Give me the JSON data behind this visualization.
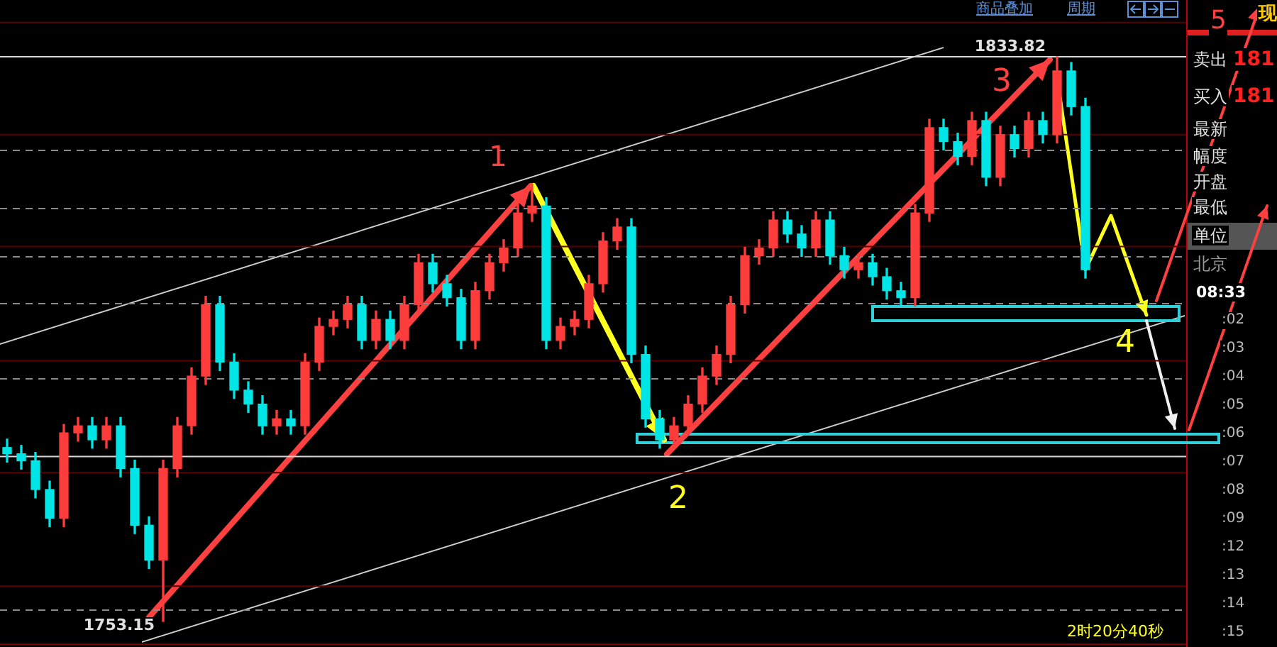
{
  "chart_data": {
    "type": "candlestick",
    "categories": [
      null,
      null,
      null,
      null,
      null,
      null,
      null,
      null,
      null,
      null,
      null,
      null,
      null,
      null,
      null,
      null,
      null,
      null,
      null,
      null,
      null,
      null,
      null,
      null,
      null,
      null,
      null,
      null,
      null,
      null,
      null,
      null,
      null,
      null,
      null,
      null,
      null,
      null,
      null,
      null,
      null,
      null,
      null,
      null,
      null,
      null,
      null,
      null,
      null,
      null,
      null,
      null,
      null,
      null,
      null,
      null,
      null,
      null,
      null,
      null,
      null,
      null,
      null,
      null,
      null,
      null,
      null,
      null,
      null,
      null,
      null,
      null,
      null,
      null,
      null,
      null,
      null
    ],
    "ohlc": [
      [
        1778.0,
        1779.2,
        1775.9,
        1777.1
      ],
      [
        1777.1,
        1778.3,
        1774.9,
        1776.1
      ],
      [
        1776.1,
        1777.3,
        1770.8,
        1772.0
      ],
      [
        1772.0,
        1773.2,
        1766.7,
        1767.9
      ],
      [
        1767.9,
        1781.3,
        1766.7,
        1780.1
      ],
      [
        1780.1,
        1782.3,
        1778.9,
        1781.1
      ],
      [
        1781.1,
        1782.3,
        1777.9,
        1779.1
      ],
      [
        1779.1,
        1782.3,
        1777.9,
        1781.1
      ],
      [
        1781.1,
        1782.3,
        1773.8,
        1775.0
      ],
      [
        1775.0,
        1776.2,
        1765.7,
        1766.9
      ],
      [
        1766.9,
        1768.1,
        1760.7,
        1761.9
      ],
      [
        1761.9,
        1776.2,
        1753.15,
        1775.0
      ],
      [
        1775.0,
        1782.3,
        1773.8,
        1781.1
      ],
      [
        1781.1,
        1789.4,
        1779.9,
        1788.2
      ],
      [
        1788.2,
        1799.6,
        1787.0,
        1798.4
      ],
      [
        1798.4,
        1799.6,
        1789.0,
        1790.2
      ],
      [
        1790.2,
        1791.4,
        1785.0,
        1786.2
      ],
      [
        1786.2,
        1787.4,
        1783.0,
        1784.2
      ],
      [
        1784.2,
        1785.4,
        1779.9,
        1781.1
      ],
      [
        1781.1,
        1783.3,
        1779.9,
        1782.1
      ],
      [
        1782.1,
        1783.3,
        1779.9,
        1781.1
      ],
      [
        1781.1,
        1791.4,
        1779.9,
        1790.2
      ],
      [
        1790.2,
        1796.5,
        1789.0,
        1795.3
      ],
      [
        1795.3,
        1797.5,
        1794.1,
        1796.3
      ],
      [
        1796.3,
        1799.6,
        1795.1,
        1798.4
      ],
      [
        1798.4,
        1799.6,
        1792.1,
        1793.3
      ],
      [
        1793.3,
        1797.5,
        1792.1,
        1796.3
      ],
      [
        1796.3,
        1797.5,
        1792.1,
        1793.3
      ],
      [
        1793.3,
        1799.6,
        1792.1,
        1798.4
      ],
      [
        1798.4,
        1805.6,
        1797.2,
        1804.4
      ],
      [
        1804.4,
        1805.6,
        1800.2,
        1801.4
      ],
      [
        1801.4,
        1802.6,
        1798.2,
        1799.4
      ],
      [
        1799.4,
        1800.6,
        1792.1,
        1793.3
      ],
      [
        1793.3,
        1801.6,
        1792.1,
        1800.4
      ],
      [
        1800.4,
        1805.6,
        1799.2,
        1804.4
      ],
      [
        1804.4,
        1807.7,
        1803.2,
        1806.5
      ],
      [
        1806.5,
        1812.7,
        1805.3,
        1811.5
      ],
      [
        1811.5,
        1815.6,
        1810.3,
        1812.5
      ],
      [
        1812.5,
        1813.7,
        1792.1,
        1793.3
      ],
      [
        1793.3,
        1796.5,
        1792.1,
        1795.3
      ],
      [
        1795.3,
        1797.5,
        1794.1,
        1796.3
      ],
      [
        1796.3,
        1802.6,
        1795.1,
        1801.4
      ],
      [
        1801.4,
        1808.7,
        1800.2,
        1807.5
      ],
      [
        1807.5,
        1810.7,
        1806.3,
        1809.5
      ],
      [
        1809.5,
        1810.7,
        1790.1,
        1791.3
      ],
      [
        1791.3,
        1792.5,
        1780.9,
        1782.1
      ],
      [
        1782.1,
        1783.3,
        1777.9,
        1779.1
      ],
      [
        1779.1,
        1782.3,
        1777.9,
        1781.1
      ],
      [
        1781.1,
        1785.4,
        1779.9,
        1784.2
      ],
      [
        1784.2,
        1789.4,
        1783.0,
        1788.2
      ],
      [
        1788.2,
        1792.5,
        1787.0,
        1791.3
      ],
      [
        1791.3,
        1799.6,
        1790.1,
        1798.4
      ],
      [
        1798.4,
        1806.6,
        1797.2,
        1805.4
      ],
      [
        1805.4,
        1807.7,
        1804.2,
        1806.5
      ],
      [
        1806.5,
        1811.7,
        1805.3,
        1810.5
      ],
      [
        1810.5,
        1811.7,
        1807.3,
        1808.5
      ],
      [
        1808.5,
        1809.7,
        1805.3,
        1806.5
      ],
      [
        1806.5,
        1811.7,
        1805.3,
        1810.5
      ],
      [
        1810.5,
        1811.7,
        1804.2,
        1805.4
      ],
      [
        1805.4,
        1806.6,
        1802.2,
        1803.4
      ],
      [
        1803.4,
        1805.6,
        1802.2,
        1804.4
      ],
      [
        1804.4,
        1805.6,
        1801.2,
        1802.4
      ],
      [
        1802.4,
        1803.6,
        1799.2,
        1800.4
      ],
      [
        1800.4,
        1801.6,
        1798.2,
        1799.4
      ],
      [
        1799.4,
        1812.7,
        1798.2,
        1811.5
      ],
      [
        1811.5,
        1824.9,
        1810.3,
        1823.7
      ],
      [
        1823.7,
        1824.9,
        1820.5,
        1821.7
      ],
      [
        1821.7,
        1822.9,
        1818.4,
        1819.6
      ],
      [
        1819.6,
        1825.9,
        1818.4,
        1824.7
      ],
      [
        1824.7,
        1825.9,
        1815.4,
        1816.6
      ],
      [
        1816.6,
        1823.9,
        1815.4,
        1822.7
      ],
      [
        1822.7,
        1823.9,
        1819.5,
        1820.7
      ],
      [
        1820.7,
        1825.9,
        1819.5,
        1824.7
      ],
      [
        1824.7,
        1825.9,
        1821.5,
        1822.7
      ],
      [
        1822.7,
        1833.82,
        1821.5,
        1831.8
      ],
      [
        1831.8,
        1833.0,
        1825.5,
        1826.7
      ],
      [
        1826.7,
        1827.9,
        1802.2,
        1803.4
      ]
    ],
    "colors": [
      "#00e5e5",
      "#00e5e5",
      "#00e5e5",
      "#00e5e5",
      "#ff3c3c",
      "#ff3c3c",
      "#00e5e5",
      "#ff3c3c",
      "#00e5e5",
      "#00e5e5",
      "#00e5e5",
      "#ff3c3c",
      "#ff3c3c",
      "#ff3c3c",
      "#ff3c3c",
      "#00e5e5",
      "#00e5e5",
      "#00e5e5",
      "#00e5e5",
      "#ff3c3c",
      "#00e5e5",
      "#ff3c3c",
      "#ff3c3c",
      "#ff3c3c",
      "#ff3c3c",
      "#00e5e5",
      "#ff3c3c",
      "#00e5e5",
      "#ff3c3c",
      "#ff3c3c",
      "#00e5e5",
      "#00e5e5",
      "#00e5e5",
      "#ff3c3c",
      "#ff3c3c",
      "#ff3c3c",
      "#ff3c3c",
      "#ff3c3c",
      "#00e5e5",
      "#ff3c3c",
      "#ff3c3c",
      "#ff3c3c",
      "#ff3c3c",
      "#ff3c3c",
      "#00e5e5",
      "#00e5e5",
      "#00e5e5",
      "#ff3c3c",
      "#ff3c3c",
      "#ff3c3c",
      "#ff3c3c",
      "#ff3c3c",
      "#ff3c3c",
      "#ff3c3c",
      "#ff3c3c",
      "#00e5e5",
      "#00e5e5",
      "#ff3c3c",
      "#00e5e5",
      "#00e5e5",
      "#ff3c3c",
      "#00e5e5",
      "#00e5e5",
      "#00e5e5",
      "#ff3c3c",
      "#ff3c3c",
      "#00e5e5",
      "#00e5e5",
      "#ff3c3c",
      "#00e5e5",
      "#ff3c3c",
      "#00e5e5",
      "#ff3c3c",
      "#00e5e5",
      "#ff3c3c",
      "#00e5e5",
      "#00e5e5"
    ],
    "grid": "y",
    "yticks": [
      {
        "value": 1820.45,
        "label": null
      },
      {
        "value": 1812.1,
        "label": null
      },
      {
        "value": 1805.2,
        "label": null
      },
      {
        "value": 1798.6,
        "label": null
      },
      {
        "value": 1787.8,
        "label": null
      },
      {
        "value": 1754.8,
        "label": null
      }
    ],
    "ref_lines": [
      {
        "axis": "y",
        "value": 1838.7,
        "color": "#5a0000"
      },
      {
        "axis": "y",
        "value": 1822.7,
        "color": "#5a0000"
      },
      {
        "axis": "y",
        "value": 1806.7,
        "color": "#5a0000"
      },
      {
        "axis": "y",
        "value": 1790.4,
        "color": "#5a0000"
      },
      {
        "axis": "y",
        "value": 1774.4,
        "color": "#5a0000"
      },
      {
        "axis": "y",
        "value": 1758.2,
        "color": "#5a0000"
      },
      {
        "axis": "y",
        "value": 1749.9,
        "color": "#7a0000"
      },
      {
        "axis": "y",
        "value": 1833.82,
        "color": "#d8d8d8"
      },
      {
        "axis": "y",
        "value": 1776.7,
        "color": "#d8d8d8"
      }
    ],
    "tick_labels": false,
    "annotations": [
      {
        "text": "1833.82",
        "y": 1833.82
      },
      "1753.15",
      "1",
      "2",
      "3",
      "4",
      "5",
      "商品叠加",
      "周期",
      "卖出",
      "181",
      "买入",
      "181",
      "最新",
      "幅度",
      "开盘",
      "最低",
      "单位",
      "北京",
      "08:33",
      ":02",
      ":03",
      ":04",
      ":05",
      ":06",
      ":07",
      ":08",
      ":09",
      ":12",
      ":13",
      ":14",
      ":15",
      "2时20分40秒",
      "现"
    ]
  }
}
